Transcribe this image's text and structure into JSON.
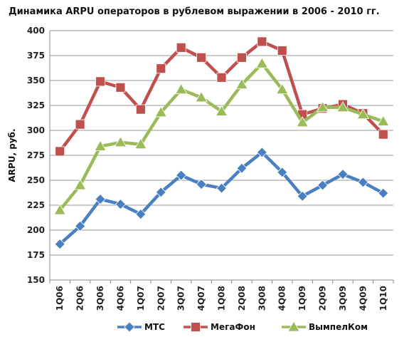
{
  "chart_data": {
    "type": "line",
    "title": "Динамика ARPU операторов в рублевом выражении в 2006 - 2010 гг.",
    "xlabel": "",
    "ylabel": "ARPU, руб.",
    "ylim": [
      150,
      400
    ],
    "yticks": [
      150,
      175,
      200,
      225,
      250,
      275,
      300,
      325,
      350,
      375,
      400
    ],
    "grid": true,
    "legend_position": "bottom",
    "categories": [
      "1Q06",
      "2Q06",
      "3Q06",
      "4Q06",
      "1Q07",
      "2Q07",
      "3Q07",
      "4Q07",
      "1Q08",
      "2Q08",
      "3Q08",
      "4Q08",
      "1Q09",
      "2Q09",
      "3Q09",
      "4Q09",
      "1Q10"
    ],
    "series": [
      {
        "name": "МТС",
        "color": "#4a7fc1",
        "marker": "diamond",
        "values": [
          186,
          204,
          231,
          226,
          216,
          238,
          255,
          246,
          242,
          262,
          278,
          258,
          234,
          245,
          256,
          248,
          237
        ]
      },
      {
        "name": "МегаФон",
        "color": "#c0504d",
        "marker": "square",
        "values": [
          279,
          306,
          349,
          343,
          321,
          362,
          383,
          373,
          353,
          373,
          389,
          380,
          316,
          322,
          326,
          317,
          296
        ]
      },
      {
        "name": "ВымпелКом",
        "color": "#9bbb59",
        "marker": "triangle",
        "values": [
          220,
          245,
          284,
          288,
          286,
          318,
          341,
          333,
          319,
          346,
          367,
          341,
          308,
          323,
          323,
          316,
          309
        ]
      }
    ]
  }
}
